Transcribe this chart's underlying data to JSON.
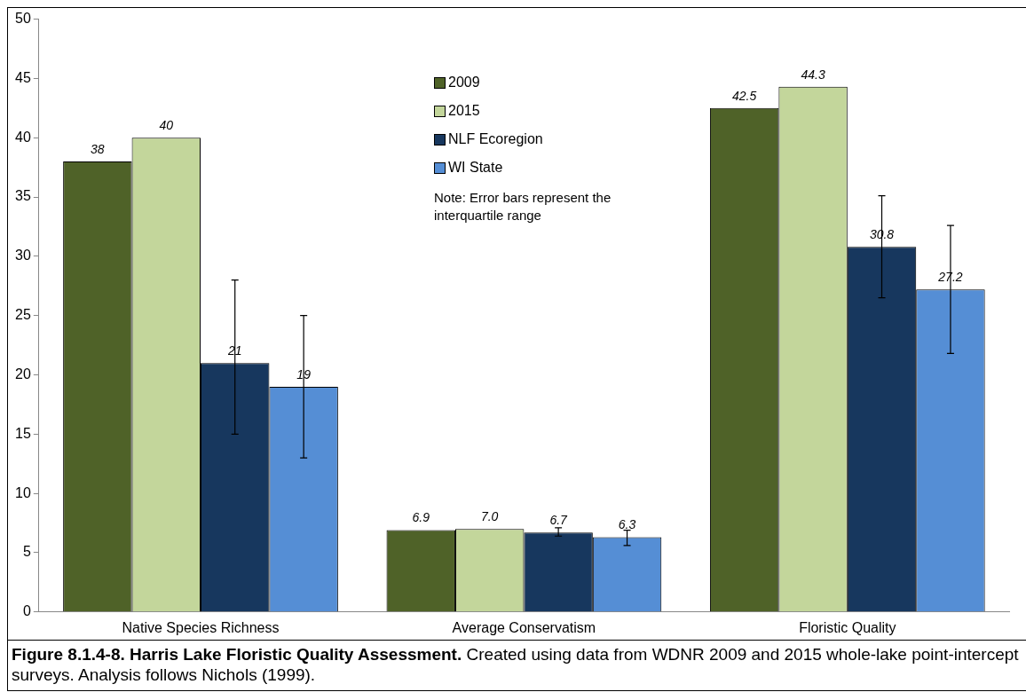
{
  "chart_data": {
    "type": "bar",
    "title": "Figure 8.1.4-8.  Harris Lake Floristic Quality Assessment.",
    "subtitle": "Created using data from WDNR 2009 and 2015 whole-lake point-intercept surveys.  Analysis follows Nichols (1999).",
    "annotations": [
      "Note: Error bars represent the interquartile range"
    ],
    "categories": [
      "Native Species Richness",
      "Average Conservatism",
      "Floristic Quality"
    ],
    "series": [
      {
        "name": "2009",
        "color": "#4f6228",
        "values": [
          38,
          6.9,
          42.5
        ],
        "value_labels": [
          "38",
          "6.9",
          "42.5"
        ]
      },
      {
        "name": "2015",
        "color": "#c3d69b",
        "values": [
          40,
          7.0,
          44.3
        ],
        "value_labels": [
          "40",
          "7.0",
          "44.3"
        ]
      },
      {
        "name": "NLF Ecoregion",
        "color": "#17375e",
        "values": [
          21,
          6.7,
          30.8
        ],
        "value_labels": [
          "21",
          "6.7",
          "30.8"
        ],
        "errors": [
          [
            15,
            28
          ],
          [
            6.4,
            7.1
          ],
          [
            26.5,
            35.1
          ]
        ]
      },
      {
        "name": "WI State",
        "color": "#558ed5",
        "values": [
          19,
          6.3,
          27.2
        ],
        "value_labels": [
          "19",
          "6.3",
          "27.2"
        ],
        "errors": [
          [
            13,
            25
          ],
          [
            5.6,
            6.9
          ],
          [
            21.8,
            32.6
          ]
        ]
      }
    ],
    "ylim": [
      0,
      50
    ],
    "yticks": [
      0,
      5,
      10,
      15,
      20,
      25,
      30,
      35,
      40,
      45,
      50
    ],
    "grid": false,
    "legend": "top"
  }
}
